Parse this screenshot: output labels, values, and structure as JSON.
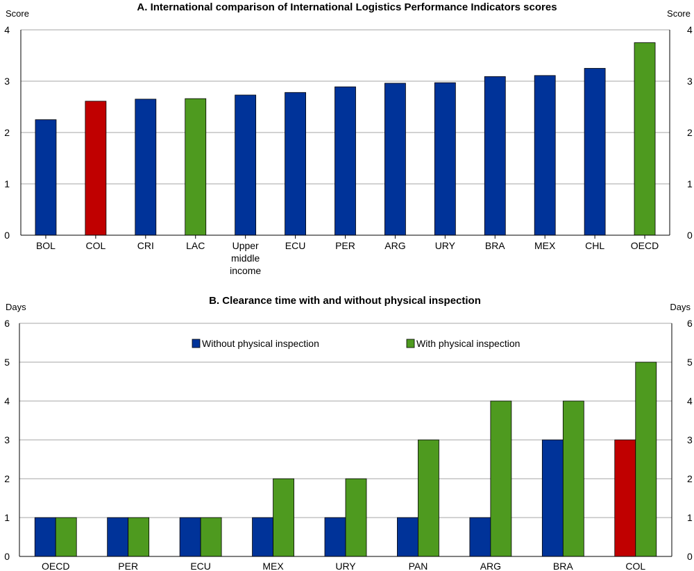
{
  "colors": {
    "default": "#003399",
    "highlight": "#c00000",
    "aggregate": "#4e9a1f",
    "grid": "#a6a6a6"
  },
  "chart_data": [
    {
      "type": "bar",
      "title": "A. International comparison of International Logistics Performance Indicators scores",
      "ylabel_left": "Score",
      "ylabel_right": "Score",
      "ylim": [
        0,
        4
      ],
      "yticks": [
        0,
        1,
        2,
        3,
        4
      ],
      "grid": true,
      "categories": [
        "BOL",
        "COL",
        "CRI",
        "LAC",
        "Upper middle income",
        "ECU",
        "PER",
        "ARG",
        "URY",
        "BRA",
        "MEX",
        "CHL",
        "OECD"
      ],
      "values": [
        2.25,
        2.61,
        2.65,
        2.66,
        2.73,
        2.78,
        2.89,
        2.96,
        2.97,
        3.09,
        3.11,
        3.25,
        3.75
      ],
      "bar_colors": [
        "default",
        "highlight",
        "default",
        "aggregate",
        "default",
        "default",
        "default",
        "default",
        "default",
        "default",
        "default",
        "default",
        "aggregate"
      ]
    },
    {
      "type": "bar",
      "title": "B. Clearance time with and without physical inspection",
      "ylabel_left": "Days",
      "ylabel_right": "Days",
      "ylim": [
        0,
        6
      ],
      "yticks": [
        0,
        1,
        2,
        3,
        4,
        5,
        6
      ],
      "grid": true,
      "legend_position": "top-center",
      "categories": [
        "OECD",
        "PER",
        "ECU",
        "MEX",
        "URY",
        "PAN",
        "ARG",
        "BRA",
        "COL"
      ],
      "series": [
        {
          "name": "Without physical inspection",
          "color": "#003399",
          "values": [
            1,
            1,
            1,
            1,
            1,
            1,
            1,
            3,
            3
          ],
          "highlight_index": 8,
          "highlight_color": "#c00000"
        },
        {
          "name": "With physical inspection",
          "color": "#4e9a1f",
          "values": [
            1,
            1,
            1,
            2,
            2,
            3,
            4,
            4,
            5
          ]
        }
      ]
    }
  ]
}
